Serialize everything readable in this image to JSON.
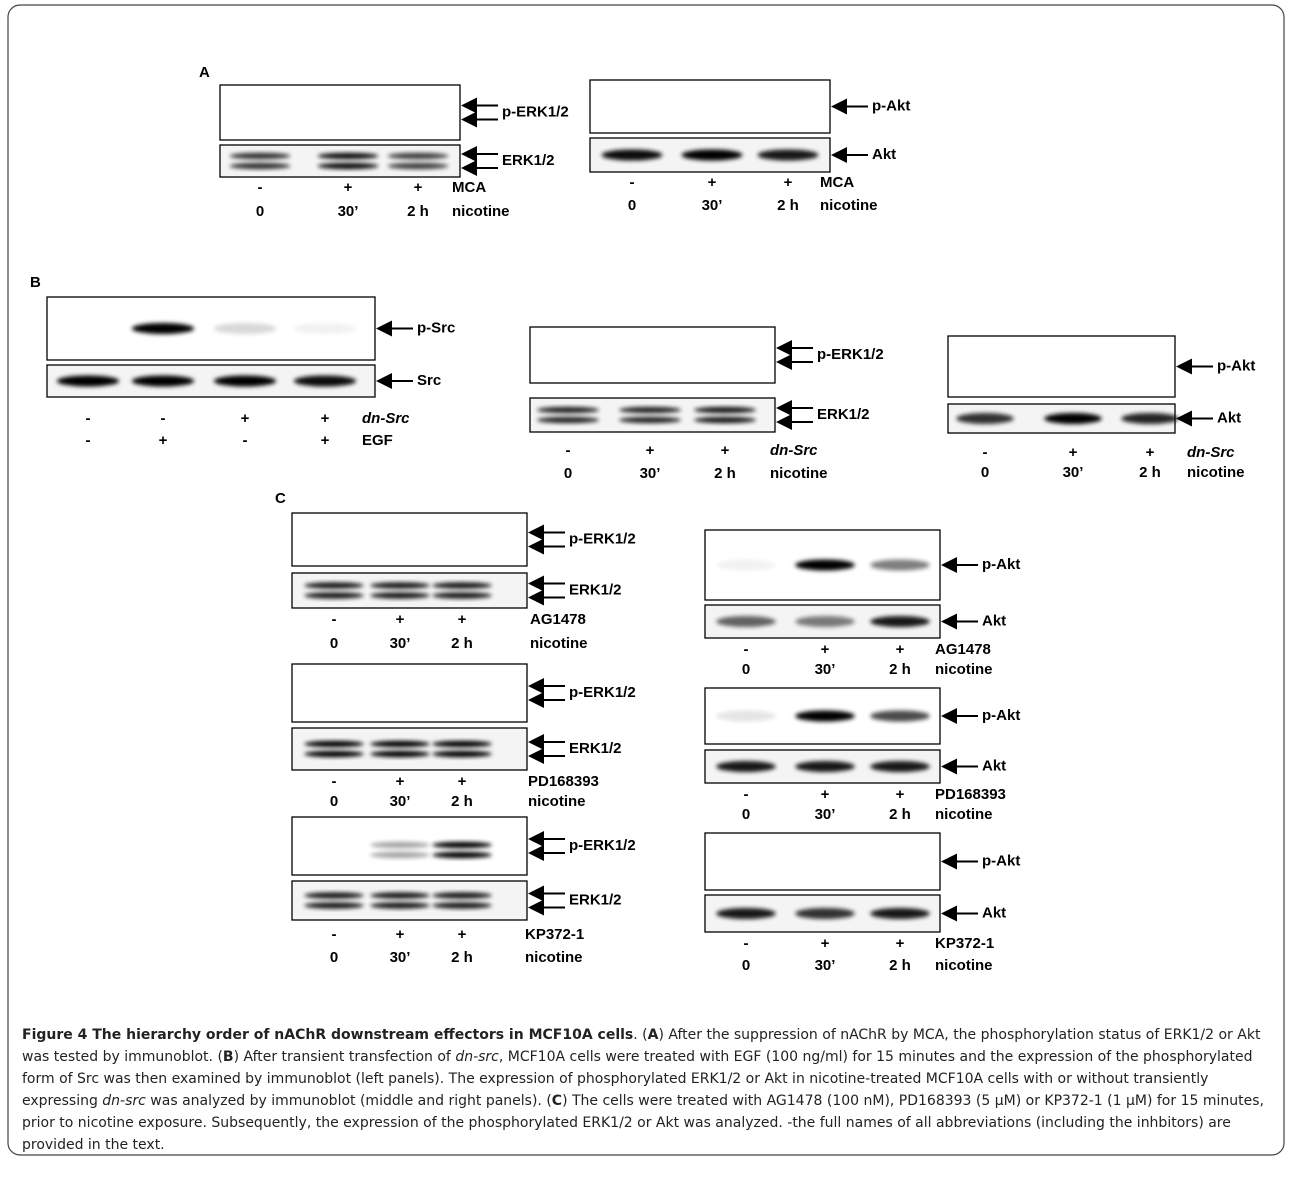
{
  "panels": [
    {
      "label": "A",
      "blots": [
        {
          "bands": [
            "p-ERK1/2",
            "ERK1/2"
          ],
          "lanes": [
            [
              "-",
              "+",
              "+"
            ],
            [
              "0",
              "30’",
              "2 h"
            ]
          ],
          "treatments": [
            "MCA",
            "nicotine"
          ]
        },
        {
          "bands": [
            "p-Akt",
            "Akt"
          ],
          "lanes": [
            [
              "-",
              "+",
              "+"
            ],
            [
              "0",
              "30’",
              "2 h"
            ]
          ],
          "treatments": [
            "MCA",
            "nicotine"
          ]
        }
      ]
    },
    {
      "label": "B",
      "blots": [
        {
          "bands": [
            "p-Src",
            "Src"
          ],
          "lanes": [
            [
              "-",
              "-",
              "+",
              "+"
            ],
            [
              "-",
              "+",
              "-",
              "+"
            ]
          ],
          "treatments": [
            "dn-Src",
            "EGF"
          ]
        },
        {
          "bands": [
            "p-ERK1/2",
            "ERK1/2"
          ],
          "lanes": [
            [
              "-",
              "+",
              "+"
            ],
            [
              "0",
              "30’",
              "2 h"
            ]
          ],
          "treatments": [
            "dn-Src",
            "nicotine"
          ]
        },
        {
          "bands": [
            "p-Akt",
            "Akt"
          ],
          "lanes": [
            [
              "-",
              "+",
              "+"
            ],
            [
              "0",
              "30’",
              "2 h"
            ]
          ],
          "treatments": [
            "dn-Src",
            "nicotine"
          ]
        }
      ]
    },
    {
      "label": "C",
      "blots": [
        {
          "bands": [
            "p-ERK1/2",
            "ERK1/2"
          ],
          "lanes": [
            [
              "-",
              "+",
              "+"
            ],
            [
              "0",
              "30’",
              "2 h"
            ]
          ],
          "treatments": [
            "AG1478",
            "nicotine"
          ]
        },
        {
          "bands": [
            "p-ERK1/2",
            "ERK1/2"
          ],
          "lanes": [
            [
              "-",
              "+",
              "+"
            ],
            [
              "0",
              "30’",
              "2 h"
            ]
          ],
          "treatments": [
            "PD168393",
            "nicotine"
          ]
        },
        {
          "bands": [
            "p-ERK1/2",
            "ERK1/2"
          ],
          "lanes": [
            [
              "-",
              "+",
              "+"
            ],
            [
              "0",
              "30’",
              "2 h"
            ]
          ],
          "treatments": [
            "KP372-1",
            "nicotine"
          ]
        },
        {
          "bands": [
            "p-Akt",
            "Akt"
          ],
          "lanes": [
            [
              "-",
              "+",
              "+"
            ],
            [
              "0",
              "30’",
              "2 h"
            ]
          ],
          "treatments": [
            "AG1478",
            "nicotine"
          ]
        },
        {
          "bands": [
            "p-Akt",
            "Akt"
          ],
          "lanes": [
            [
              "-",
              "+",
              "+"
            ],
            [
              "0",
              "30’",
              "2 h"
            ]
          ],
          "treatments": [
            "PD168393",
            "nicotine"
          ]
        },
        {
          "bands": [
            "p-Akt",
            "Akt"
          ],
          "lanes": [
            [
              "-",
              "+",
              "+"
            ],
            [
              "0",
              "30’",
              "2 h"
            ]
          ],
          "treatments": [
            "KP372-1",
            "nicotine"
          ]
        }
      ]
    }
  ],
  "caption": [
    {
      "text": "Figure 4 The hierarchy order of nAChR downstream effectors in MCF10A cells",
      "style": "bold"
    },
    {
      "text": ". ("
    },
    {
      "text": "A",
      "style": "bold"
    },
    {
      "text": ") After the suppression of nAChR by MCA, the phosphorylation status of ERK1/2 or Akt was tested by immunoblot. ("
    },
    {
      "text": "B",
      "style": "bold"
    },
    {
      "text": ") After transient transfection of "
    },
    {
      "text": "dn-src",
      "style": "italic"
    },
    {
      "text": ", MCF10A cells were treated with EGF (100 ng/ml) for 15 minutes and the expression of the phosphorylated form of Src was then examined by immunoblot (left panels). The expression of phosphorylated ERK1/2 or Akt in nicotine-treated MCF10A cells with or without transiently expressing "
    },
    {
      "text": "dn-src",
      "style": "italic"
    },
    {
      "text": " was analyzed by immunoblot (middle and right panels). ("
    },
    {
      "text": "C",
      "style": "bold"
    },
    {
      "text": ") The cells were treated with AG1478 (100 nM), PD168393 (5 µM) or KP372-1 (1 µM) for 15 minutes, prior to nicotine exposure. Subsequently, the expression of the phosphorylated ERK1/2 or Akt was analyzed. -the full names of all abbreviations (including the inhbitors) are provided in the text."
    }
  ]
}
